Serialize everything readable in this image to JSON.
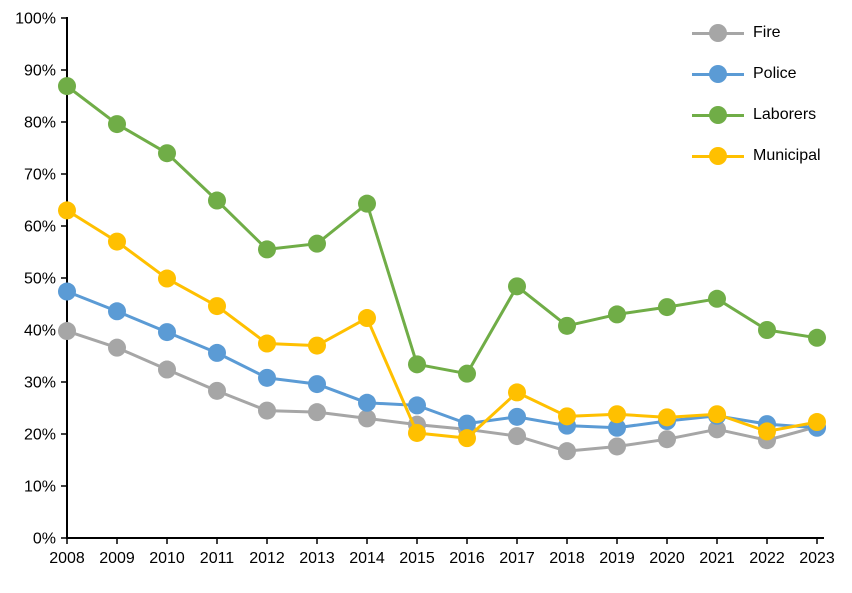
{
  "chart_data": {
    "type": "line",
    "title": "",
    "xlabel": "",
    "ylabel": "",
    "x": [
      "2008",
      "2009",
      "2010",
      "2011",
      "2012",
      "2013",
      "2014",
      "2015",
      "2016",
      "2017",
      "2018",
      "2019",
      "2020",
      "2021",
      "2022",
      "2023"
    ],
    "series": [
      {
        "name": "Fire",
        "color": "#a6a6a6",
        "values": [
          39.8,
          36.6,
          32.4,
          28.3,
          24.5,
          24.2,
          23.0,
          21.8,
          20.9,
          19.6,
          16.7,
          17.6,
          19.0,
          20.9,
          18.8,
          21.4
        ]
      },
      {
        "name": "Police",
        "color": "#5b9bd5",
        "values": [
          47.4,
          43.6,
          39.6,
          35.6,
          30.8,
          29.6,
          26.0,
          25.5,
          22.0,
          23.3,
          21.6,
          21.2,
          22.5,
          23.5,
          21.9,
          21.2
        ]
      },
      {
        "name": "Laborers",
        "color": "#70ad47",
        "values": [
          86.9,
          79.6,
          74.0,
          64.9,
          55.5,
          56.6,
          64.3,
          33.4,
          31.6,
          48.4,
          40.8,
          43.0,
          44.4,
          46.0,
          40.0,
          38.5
        ]
      },
      {
        "name": "Municipal",
        "color": "#ffc000",
        "values": [
          63.0,
          57.0,
          49.9,
          44.6,
          37.4,
          37.0,
          42.3,
          20.2,
          19.2,
          28.0,
          23.4,
          23.8,
          23.2,
          23.8,
          20.5,
          22.3
        ]
      }
    ],
    "ylim": [
      0,
      100
    ],
    "ytick_step": 10,
    "ytick_suffix": "%",
    "grid": false,
    "legend_position": "top-right",
    "axis_color": "#000000",
    "background": "#ffffff"
  },
  "legend": {
    "items": [
      "Fire",
      "Police",
      "Laborers",
      "Municipal"
    ]
  }
}
